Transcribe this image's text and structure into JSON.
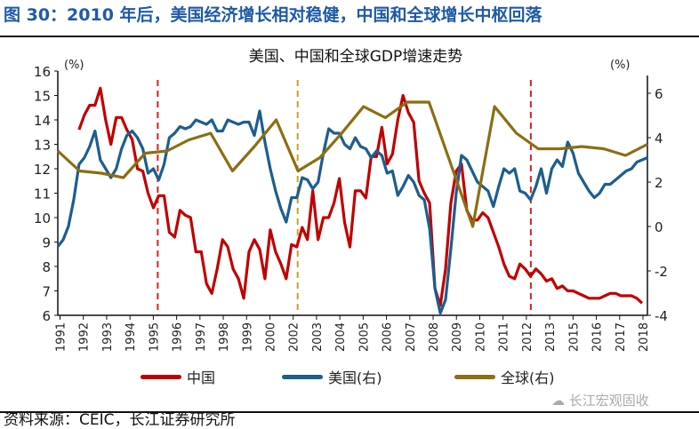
{
  "figure_title": "图 30：2010 年后，美国经济增长相对稳健，中国和全球增长中枢回落",
  "source": "资料来源：CEIC，长江证券研究所",
  "watermark": "长江宏观固收",
  "chart_data": {
    "type": "line",
    "title": "美国、中国和全球GDP增速走势",
    "left_unit": "(%)",
    "right_unit": "(%)",
    "x_tick_labels": [
      "1991",
      "1992",
      "1993",
      "1994",
      "1995",
      "1996",
      "1997",
      "1998",
      "1999",
      "2000",
      "2002",
      "2003",
      "2004",
      "2005",
      "2006",
      "2007",
      "2008",
      "2009",
      "2010",
      "2011",
      "2012",
      "2013",
      "2015",
      "2016",
      "2017",
      "2018"
    ],
    "left_axis": {
      "min": 6,
      "max": 16,
      "ticks": [
        6,
        7,
        8,
        9,
        10,
        11,
        12,
        13,
        14,
        15,
        16
      ]
    },
    "right_axis": {
      "min": -4,
      "max": 7,
      "ticks": [
        -4,
        -2,
        0,
        2,
        4,
        6
      ]
    },
    "grid": false,
    "legend_position": "bottom",
    "reference_lines": [
      {
        "x": "1995",
        "color": "#e02020"
      },
      {
        "x": "2002",
        "color": "#c9a227"
      },
      {
        "x": "2012",
        "color": "#e02020"
      }
    ],
    "series": [
      {
        "name": "中国",
        "axis": "left",
        "color": "#c00000",
        "frequency": "quarterly",
        "start": "1992Q1",
        "values": [
          13.6,
          14.2,
          14.6,
          14.6,
          15.3,
          14.0,
          13.0,
          14.1,
          14.1,
          13.6,
          13.2,
          12.0,
          11.9,
          11.0,
          10.4,
          10.9,
          10.9,
          9.4,
          9.2,
          10.3,
          10.1,
          10.0,
          8.6,
          8.6,
          7.3,
          6.9,
          7.9,
          9.1,
          8.8,
          7.9,
          7.5,
          6.7,
          8.6,
          9.1,
          8.7,
          7.5,
          9.5,
          8.6,
          8.1,
          7.5,
          8.9,
          8.8,
          9.6,
          9.1,
          11.1,
          9.1,
          10.0,
          10.0,
          10.6,
          11.6,
          9.8,
          8.8,
          11.1,
          11.1,
          10.8,
          12.5,
          12.5,
          13.7,
          12.2,
          12.6,
          14.0,
          15.0,
          14.3,
          13.9,
          11.5,
          11.0,
          10.6,
          7.1,
          6.4,
          7.9,
          10.6,
          11.9,
          12.2,
          10.3,
          9.9,
          9.9,
          10.2,
          10.0,
          9.4,
          8.8,
          8.1,
          7.6,
          7.5,
          8.1,
          7.9,
          7.6,
          7.9,
          7.7,
          7.4,
          7.5,
          7.1,
          7.2,
          7.0,
          7.0,
          6.9,
          6.8,
          6.7,
          6.7,
          6.7,
          6.8,
          6.9,
          6.9,
          6.8,
          6.8,
          6.8,
          6.7,
          6.5
        ]
      },
      {
        "name": "美国(右)",
        "axis": "right",
        "color": "#1d5e8e",
        "frequency": "quarterly",
        "start": "1991Q1",
        "values": [
          -0.9,
          -0.6,
          0.0,
          1.2,
          2.8,
          3.1,
          3.6,
          4.3,
          3.0,
          2.6,
          2.2,
          2.6,
          3.5,
          4.1,
          4.3,
          4.0,
          3.5,
          2.4,
          2.6,
          2.1,
          2.8,
          4.0,
          4.2,
          4.5,
          4.4,
          4.5,
          4.8,
          4.7,
          4.6,
          4.8,
          4.3,
          4.3,
          4.8,
          4.7,
          4.6,
          4.7,
          4.7,
          4.1,
          5.2,
          3.8,
          2.6,
          1.6,
          0.8,
          0.2,
          1.3,
          1.3,
          2.2,
          2.1,
          1.7,
          2.0,
          3.3,
          4.4,
          4.2,
          4.2,
          3.7,
          3.5,
          4.0,
          3.6,
          3.5,
          3.1,
          3.4,
          3.2,
          2.4,
          2.5,
          1.4,
          1.8,
          2.3,
          2.0,
          1.4,
          1.2,
          -0.1,
          -2.8,
          -3.9,
          -3.3,
          -1.0,
          1.5,
          3.2,
          3.0,
          2.5,
          2.0,
          1.8,
          1.6,
          0.9,
          1.8,
          2.6,
          2.4,
          2.6,
          1.6,
          1.5,
          1.2,
          1.8,
          2.6,
          1.5,
          2.6,
          3.0,
          2.7,
          3.8,
          3.3,
          2.4,
          2.0,
          1.6,
          1.3,
          1.5,
          1.9,
          1.9,
          2.1,
          2.3,
          2.5,
          2.6,
          2.9,
          3.0,
          3.1
        ]
      },
      {
        "name": "全球(右)",
        "axis": "right",
        "color": "#8c6e12",
        "frequency": "annual",
        "start": "1991",
        "values": [
          3.4,
          2.5,
          2.4,
          2.2,
          3.3,
          3.4,
          3.9,
          4.2,
          2.5,
          3.6,
          4.8,
          2.5,
          3.1,
          4.2,
          5.4,
          4.9,
          5.6,
          5.6,
          2.8,
          0.0,
          5.4,
          4.2,
          3.5,
          3.5,
          3.6,
          3.5,
          3.2,
          3.7
        ]
      }
    ]
  }
}
